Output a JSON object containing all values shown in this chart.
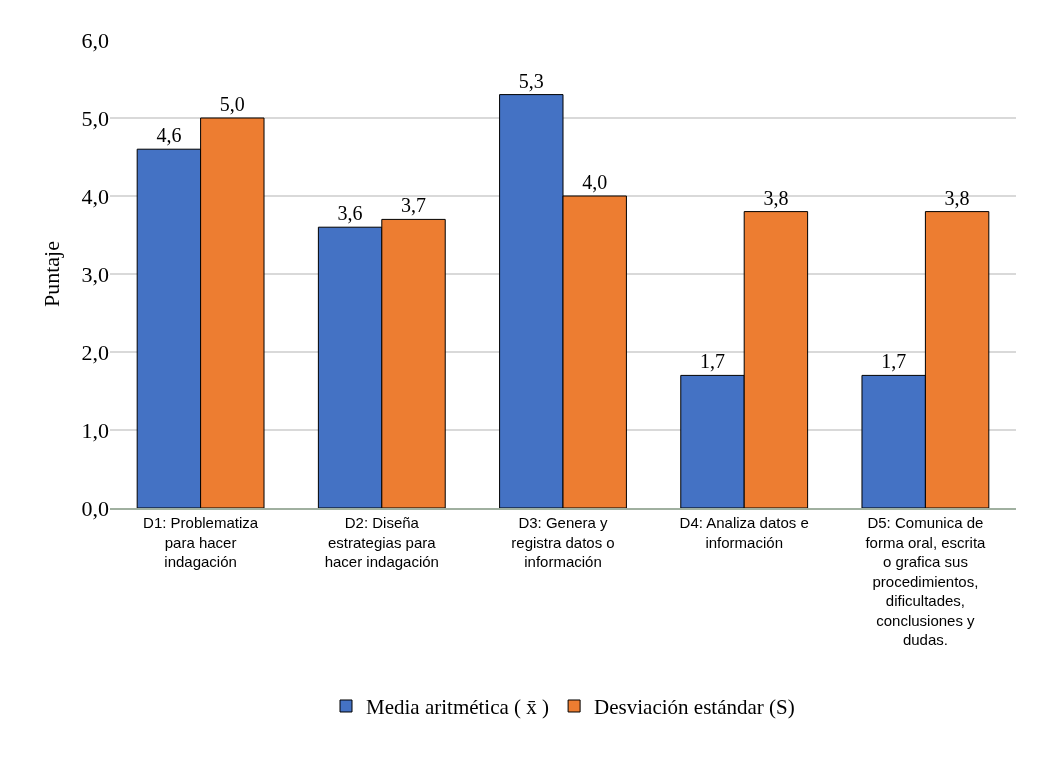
{
  "chart_data": {
    "type": "bar",
    "ylabel": "Puntaje",
    "categories": [
      "D1: Problematiza para hacer indagación",
      "D2: Diseña estrategias para hacer indagación",
      "D3: Genera y registra datos o información",
      "D4: Analiza datos e información",
      "D5: Comunica de forma oral, escrita o grafica sus procedimientos, dificultades, conclusiones y dudas."
    ],
    "series": [
      {
        "name": "Media aritmética ( x̄ )",
        "color": "#4472c4",
        "values": [
          4.6,
          3.6,
          5.3,
          1.7,
          1.7
        ],
        "value_labels": [
          "4,6",
          "3,6",
          "5,3",
          "1,7",
          "1,7"
        ]
      },
      {
        "name": "Desviación estándar (S)",
        "color": "#ed7d31",
        "values": [
          5.0,
          3.7,
          4.0,
          3.8,
          3.8
        ],
        "value_labels": [
          "5,0",
          "3,7",
          "4,0",
          "3,8",
          "3,8"
        ]
      }
    ],
    "ylim": [
      0,
      6
    ],
    "yticks": [
      {
        "value": 0,
        "label": "0,0"
      },
      {
        "value": 1,
        "label": "1,0"
      },
      {
        "value": 2,
        "label": "2,0"
      },
      {
        "value": 3,
        "label": "3,0"
      },
      {
        "value": 4,
        "label": "4,0"
      },
      {
        "value": 5,
        "label": "5,0"
      },
      {
        "value": 6,
        "label": "6,0"
      }
    ],
    "grid": "y",
    "legend": "bottom"
  }
}
